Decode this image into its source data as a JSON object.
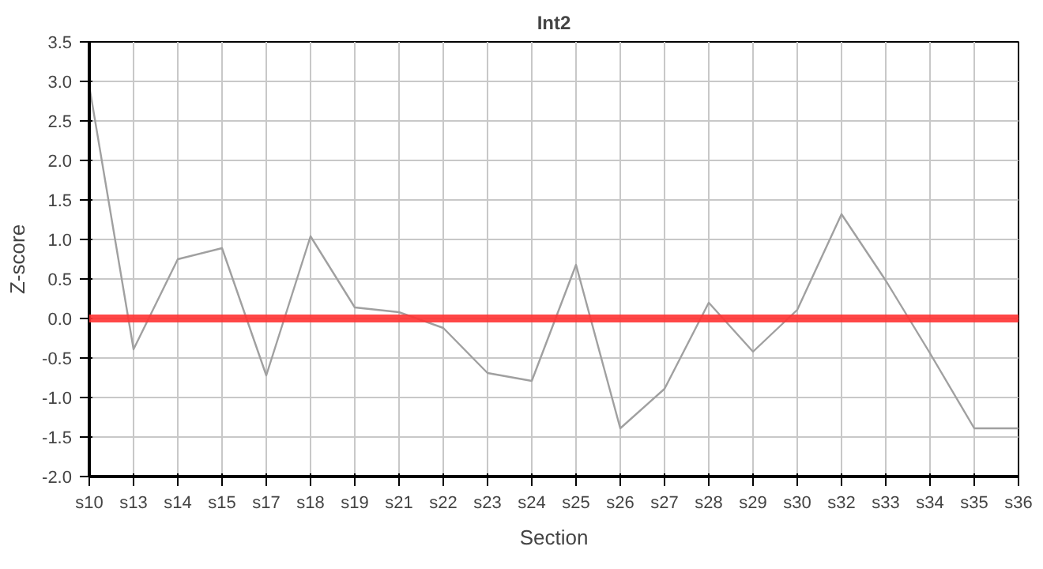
{
  "chart_data": {
    "type": "line",
    "title": "Int2",
    "xlabel": "Section",
    "ylabel": "Z-score",
    "categories": [
      "s10",
      "s13",
      "s14",
      "s15",
      "s17",
      "s18",
      "s19",
      "s21",
      "s22",
      "s23",
      "s24",
      "s25",
      "s26",
      "s27",
      "s28",
      "s29",
      "s30",
      "s32",
      "s33",
      "s34",
      "s35",
      "s36"
    ],
    "series": [
      {
        "color": "#a0a0a0",
        "values": [
          2.94,
          -0.39,
          0.75,
          0.89,
          -0.72,
          1.04,
          0.14,
          0.08,
          -0.12,
          -0.69,
          -0.79,
          0.68,
          -1.39,
          -0.89,
          0.2,
          -0.42,
          0.11,
          1.32,
          0.48,
          -0.44,
          -1.39,
          -1.39
        ]
      }
    ],
    "ylim": [
      -2.0,
      3.5
    ],
    "yticks": [
      {
        "value": -2.0,
        "label": "-2.0"
      },
      {
        "value": -1.5,
        "label": "-1.5"
      },
      {
        "value": -1.0,
        "label": "-1.0"
      },
      {
        "value": -0.5,
        "label": "-0.5"
      },
      {
        "value": 0.0,
        "label": "0.0"
      },
      {
        "value": 0.5,
        "label": "0.5"
      },
      {
        "value": 1.0,
        "label": "1.0"
      },
      {
        "value": 1.5,
        "label": "1.5"
      },
      {
        "value": 2.0,
        "label": "2.0"
      },
      {
        "value": 2.5,
        "label": "2.5"
      },
      {
        "value": 3.0,
        "label": "3.0"
      },
      {
        "value": 3.5,
        "label": "3.5"
      }
    ],
    "ref_lines": [
      {
        "axis": "y",
        "value": 0.0,
        "color": "#ff3333"
      }
    ],
    "grid": true,
    "marker": "none",
    "line_style": "solid"
  }
}
